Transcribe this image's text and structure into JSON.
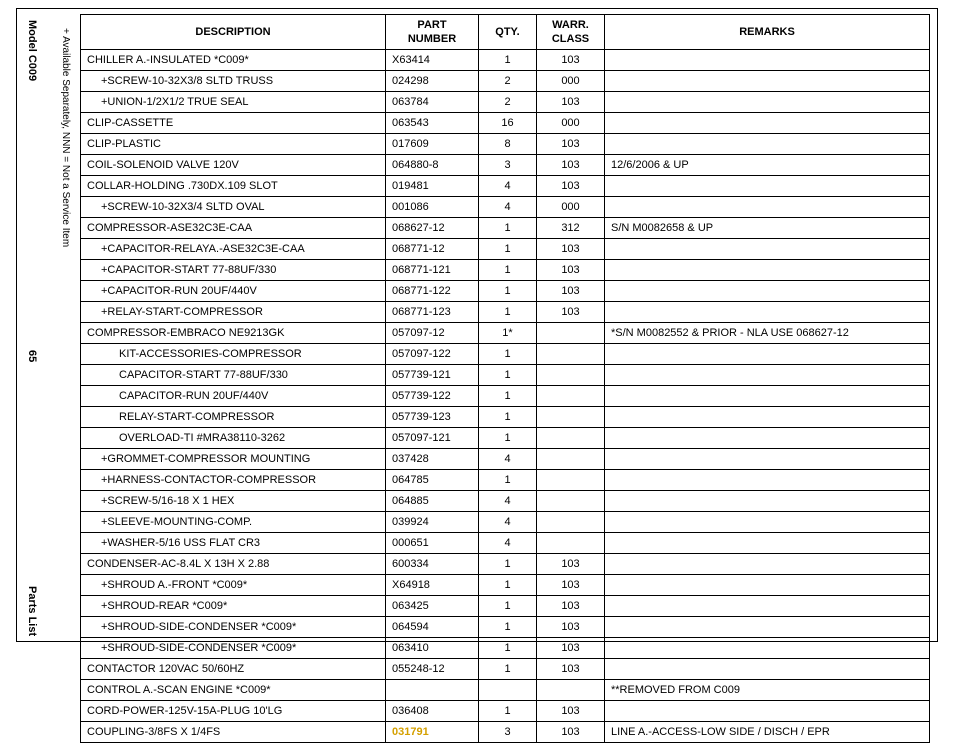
{
  "side": {
    "model": "Model C009",
    "footnote": "+ Available Separately, NNN = Not a Service Item",
    "pageno": "65",
    "bottom": "Parts List"
  },
  "headers": {
    "description": "DESCRIPTION",
    "part": "PART NUMBER",
    "qty": "QTY.",
    "warr": "WARR. CLASS",
    "remarks": "REMARKS"
  },
  "rows": [
    {
      "d": "CHILLER A.-INSULATED *C009*",
      "p": "X63414",
      "q": "1",
      "w": "103",
      "r": "",
      "i": 0
    },
    {
      "d": "+SCREW-10-32X3/8 SLTD TRUSS",
      "p": "024298",
      "q": "2",
      "w": "000",
      "r": "",
      "i": 1
    },
    {
      "d": "+UNION-1/2X1/2 TRUE SEAL",
      "p": "063784",
      "q": "2",
      "w": "103",
      "r": "",
      "i": 1
    },
    {
      "d": "CLIP-CASSETTE",
      "p": "063543",
      "q": "16",
      "w": "000",
      "r": "",
      "i": 0
    },
    {
      "d": "CLIP-PLASTIC",
      "p": "017609",
      "q": "8",
      "w": "103",
      "r": "",
      "i": 0
    },
    {
      "d": "COIL-SOLENOID VALVE 120V",
      "p": "064880-8",
      "q": "3",
      "w": "103",
      "r": "12/6/2006 & UP",
      "i": 0
    },
    {
      "d": "COLLAR-HOLDING .730DX.109 SLOT",
      "p": "019481",
      "q": "4",
      "w": "103",
      "r": "",
      "i": 0
    },
    {
      "d": "+SCREW-10-32X3/4 SLTD OVAL",
      "p": "001086",
      "q": "4",
      "w": "000",
      "r": "",
      "i": 1
    },
    {
      "d": "COMPRESSOR-ASE32C3E-CAA",
      "p": "068627-12",
      "q": "1",
      "w": "312",
      "r": "S/N M0082658 & UP",
      "i": 0
    },
    {
      "d": "+CAPACITOR-RELAYA.-ASE32C3E-CAA",
      "p": "068771-12",
      "q": "1",
      "w": "103",
      "r": "",
      "i": 1
    },
    {
      "d": "+CAPACITOR-START 77-88UF/330",
      "p": "068771-121",
      "q": "1",
      "w": "103",
      "r": "",
      "i": 1
    },
    {
      "d": "+CAPACITOR-RUN 20UF/440V",
      "p": "068771-122",
      "q": "1",
      "w": "103",
      "r": "",
      "i": 1
    },
    {
      "d": "+RELAY-START-COMPRESSOR",
      "p": "068771-123",
      "q": "1",
      "w": "103",
      "r": "",
      "i": 1
    },
    {
      "d": "COMPRESSOR-EMBRACO NE9213GK",
      "p": "057097-12",
      "q": "1*",
      "w": "",
      "r": "*S/N M0082552 & PRIOR - NLA USE 068627-12",
      "i": 0
    },
    {
      "d": "KIT-ACCESSORIES-COMPRESSOR",
      "p": "057097-122",
      "q": "1",
      "w": "",
      "r": "",
      "i": 2
    },
    {
      "d": "CAPACITOR-START 77-88UF/330",
      "p": "057739-121",
      "q": "1",
      "w": "",
      "r": "",
      "i": 2
    },
    {
      "d": "CAPACITOR-RUN 20UF/440V",
      "p": "057739-122",
      "q": "1",
      "w": "",
      "r": "",
      "i": 2
    },
    {
      "d": "RELAY-START-COMPRESSOR",
      "p": "057739-123",
      "q": "1",
      "w": "",
      "r": "",
      "i": 2
    },
    {
      "d": "OVERLOAD-TI #MRA38110-3262",
      "p": "057097-121",
      "q": "1",
      "w": "",
      "r": "",
      "i": 2
    },
    {
      "d": "+GROMMET-COMPRESSOR MOUNTING",
      "p": "037428",
      "q": "4",
      "w": "",
      "r": "",
      "i": 1
    },
    {
      "d": "+HARNESS-CONTACTOR-COMPRESSOR",
      "p": "064785",
      "q": "1",
      "w": "",
      "r": "",
      "i": 1
    },
    {
      "d": "+SCREW-5/16-18 X 1 HEX",
      "p": "064885",
      "q": "4",
      "w": "",
      "r": "",
      "i": 1
    },
    {
      "d": "+SLEEVE-MOUNTING-COMP.",
      "p": "039924",
      "q": "4",
      "w": "",
      "r": "",
      "i": 1
    },
    {
      "d": "+WASHER-5/16 USS FLAT CR3",
      "p": "000651",
      "q": "4",
      "w": "",
      "r": "",
      "i": 1
    },
    {
      "d": "CONDENSER-AC-8.4L X 13H X 2.88",
      "p": "600334",
      "q": "1",
      "w": "103",
      "r": "",
      "i": 0
    },
    {
      "d": "+SHROUD A.-FRONT *C009*",
      "p": "X64918",
      "q": "1",
      "w": "103",
      "r": "",
      "i": 1
    },
    {
      "d": "+SHROUD-REAR *C009*",
      "p": "063425",
      "q": "1",
      "w": "103",
      "r": "",
      "i": 1
    },
    {
      "d": "+SHROUD-SIDE-CONDENSER *C009*",
      "p": "064594",
      "q": "1",
      "w": "103",
      "r": "",
      "i": 1
    },
    {
      "d": "+SHROUD-SIDE-CONDENSER *C009*",
      "p": "063410",
      "q": "1",
      "w": "103",
      "r": "",
      "i": 1
    },
    {
      "d": "CONTACTOR 120VAC 50/60HZ",
      "p": "055248-12",
      "q": "1",
      "w": "103",
      "r": "",
      "i": 0
    },
    {
      "d": "CONTROL A.-SCAN ENGINE *C009*",
      "p": "",
      "q": "",
      "w": "",
      "r": "**REMOVED FROM C009",
      "i": 0
    },
    {
      "d": "CORD-POWER-125V-15A-PLUG 10'LG",
      "p": "036408",
      "q": "1",
      "w": "103",
      "r": "",
      "i": 0
    },
    {
      "d": "COUPLING-3/8FS X 1/4FS",
      "p": "031791",
      "q": "3",
      "w": "103",
      "r": "LINE A.-ACCESS-LOW SIDE / DISCH / EPR",
      "i": 0,
      "hl": true
    }
  ]
}
